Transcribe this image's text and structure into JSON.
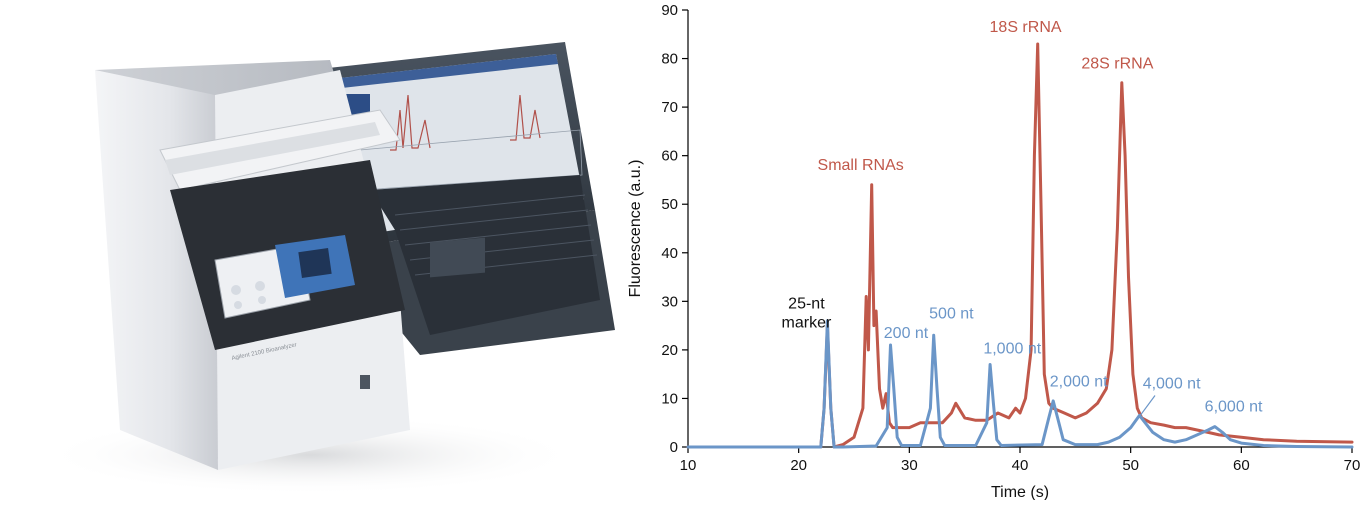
{
  "chart_data": {
    "type": "line",
    "xlabel": "Time (s)",
    "ylabel": "Fluorescence (a.u.)",
    "xlim": [
      10,
      70
    ],
    "ylim": [
      0,
      90
    ],
    "xticks": [
      10,
      20,
      30,
      40,
      50,
      60,
      70
    ],
    "yticks": [
      0,
      10,
      20,
      30,
      40,
      50,
      60,
      70,
      80,
      90
    ],
    "grid": false,
    "legend": "none",
    "series": [
      {
        "color": "#c0584a",
        "x": [
          10,
          18,
          20,
          22.0,
          22.3,
          22.6,
          22.9,
          23.2,
          24,
          25,
          25.8,
          26.1,
          26.3,
          26.6,
          26.8,
          27.0,
          27.3,
          27.6,
          27.9,
          28.2,
          28.5,
          29,
          30,
          31,
          32,
          33,
          33.8,
          34.2,
          35,
          36,
          37,
          38,
          39,
          39.6,
          40,
          40.5,
          41.0,
          41.3,
          41.6,
          41.9,
          42.2,
          42.6,
          43,
          44,
          45,
          46,
          47,
          47.8,
          48.3,
          48.8,
          49.2,
          49.5,
          49.8,
          50.2,
          50.6,
          51,
          51.8,
          53,
          54,
          55,
          56,
          57,
          58,
          60,
          62,
          65,
          70
        ],
        "y": [
          0,
          0,
          0,
          0,
          8,
          25,
          8,
          0,
          0.5,
          2,
          8,
          31,
          20,
          54,
          25,
          28,
          12,
          8,
          11,
          5,
          4,
          4,
          4,
          5,
          5,
          5,
          7,
          9,
          6,
          5.5,
          5.5,
          7,
          6,
          8,
          7,
          10,
          20,
          60,
          83,
          50,
          15,
          9,
          8,
          7,
          6,
          7,
          9,
          12,
          20,
          45,
          75,
          60,
          35,
          15,
          8,
          6,
          5,
          4.5,
          4,
          4,
          3.5,
          3,
          2.5,
          2,
          1.5,
          1.2,
          1
        ]
      },
      {
        "color": "#6b96c8",
        "x": [
          10,
          20,
          22.0,
          22.3,
          22.6,
          22.9,
          23.2,
          24,
          27,
          28.0,
          28.3,
          28.6,
          28.9,
          29.3,
          31,
          31.9,
          32.2,
          32.5,
          32.8,
          33.2,
          36,
          37.0,
          37.3,
          37.6,
          37.9,
          38.3,
          42,
          42.6,
          43.0,
          43.4,
          43.9,
          45,
          47,
          48,
          49,
          50,
          50.8,
          51.3,
          52,
          53,
          54,
          55,
          56,
          57,
          57.6,
          58.3,
          59,
          60,
          62,
          65,
          70
        ],
        "y": [
          0,
          0,
          0,
          8,
          26,
          8,
          0,
          0,
          0.2,
          4,
          21,
          12,
          2,
          0.3,
          0.3,
          8,
          23,
          12,
          2,
          0.3,
          0.3,
          5,
          17,
          9,
          1.5,
          0.3,
          0.5,
          6,
          9.5,
          6,
          1.5,
          0.5,
          0.5,
          1,
          2,
          4,
          6.5,
          5,
          3,
          1.5,
          1,
          1.5,
          2.5,
          3.5,
          4.2,
          3,
          1.5,
          0.8,
          0.3,
          0.1,
          0
        ]
      }
    ],
    "annotations": [
      {
        "text_lines": [
          "25-nt",
          "marker"
        ],
        "x": 20.7,
        "y": 28.5,
        "color": "#111111"
      },
      {
        "text_lines": [
          "Small RNAs"
        ],
        "x": 25.6,
        "y": 57,
        "color": "#c0584a"
      },
      {
        "text_lines": [
          "18S rRNA"
        ],
        "x": 40.5,
        "y": 85.5,
        "color": "#c0584a"
      },
      {
        "text_lines": [
          "28S rRNA"
        ],
        "x": 48.8,
        "y": 78,
        "color": "#c0584a"
      },
      {
        "text_lines": [
          "200 nt"
        ],
        "x": 29.7,
        "y": 22.5,
        "color": "#6b96c8"
      },
      {
        "text_lines": [
          "500 nt"
        ],
        "x": 33.8,
        "y": 26.5,
        "color": "#6b96c8"
      },
      {
        "text_lines": [
          "1,000 nt"
        ],
        "x": 39.3,
        "y": 19.3,
        "color": "#6b96c8"
      },
      {
        "text_lines": [
          "2,000 nt"
        ],
        "x": 45.3,
        "y": 12.5,
        "color": "#6b96c8"
      },
      {
        "text_lines": [
          "4,000 nt"
        ],
        "x": 53.7,
        "y": 12.0,
        "color": "#6b96c8"
      },
      {
        "text_lines": [
          "6,000 nt"
        ],
        "x": 59.3,
        "y": 7.3,
        "color": "#6b96c8"
      }
    ]
  },
  "photo": {
    "icon": "bioanalyzer-instrument-with-laptop-photo",
    "instrument_label": "Agilent 2100 Bioanalyzer"
  }
}
